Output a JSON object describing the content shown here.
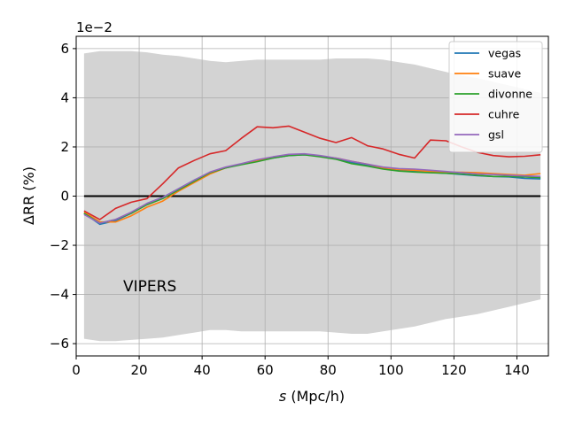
{
  "chart_data": {
    "type": "line",
    "xlabel_italic": "s",
    "xlabel_rest": " (Mpc/h)",
    "ylabel": "ΔRR (%)",
    "offset_text": "1e−2",
    "annotation": "VIPERS",
    "xlim": [
      0,
      150
    ],
    "ylim": [
      -6.5,
      6.5
    ],
    "xticks": [
      0,
      20,
      40,
      60,
      80,
      100,
      120,
      140
    ],
    "yticks": [
      -6,
      -4,
      -2,
      0,
      2,
      4,
      6
    ],
    "xtick_labels": [
      "0",
      "20",
      "40",
      "60",
      "80",
      "100",
      "120",
      "140"
    ],
    "ytick_labels": [
      "−6",
      "−4",
      "−2",
      "0",
      "2",
      "4",
      "6"
    ],
    "grid": true,
    "legend_position": "top-right",
    "zero_line": true,
    "band_color": "#d3d3d3",
    "x": [
      2.5,
      7.5,
      12.5,
      17.5,
      22.5,
      27.5,
      32.5,
      37.5,
      42.5,
      47.5,
      52.5,
      57.5,
      62.5,
      67.5,
      72.5,
      77.5,
      82.5,
      87.5,
      92.5,
      97.5,
      102.5,
      107.5,
      112.5,
      117.5,
      122.5,
      127.5,
      132.5,
      137.5,
      142.5,
      147.5
    ],
    "band_upper": [
      5.8,
      5.9,
      5.9,
      5.9,
      5.85,
      5.75,
      5.7,
      5.6,
      5.5,
      5.45,
      5.5,
      5.55,
      5.55,
      5.55,
      5.55,
      5.55,
      5.6,
      5.6,
      5.6,
      5.55,
      5.45,
      5.35,
      5.2,
      5.05,
      4.9,
      4.8,
      4.65,
      4.5,
      4.35,
      4.2
    ],
    "band_lower": [
      -5.8,
      -5.9,
      -5.9,
      -5.85,
      -5.8,
      -5.75,
      -5.65,
      -5.55,
      -5.45,
      -5.45,
      -5.5,
      -5.5,
      -5.5,
      -5.5,
      -5.5,
      -5.5,
      -5.55,
      -5.6,
      -5.6,
      -5.5,
      -5.4,
      -5.3,
      -5.15,
      -5.0,
      -4.9,
      -4.8,
      -4.65,
      -4.5,
      -4.35,
      -4.2
    ],
    "series": [
      {
        "name": "vegas",
        "color": "#1f77b4",
        "values": [
          -0.7,
          -1.15,
          -1.0,
          -0.7,
          -0.3,
          -0.05,
          0.3,
          0.65,
          0.95,
          1.15,
          1.3,
          1.42,
          1.55,
          1.65,
          1.68,
          1.62,
          1.52,
          1.38,
          1.25,
          1.12,
          1.05,
          1.02,
          0.96,
          0.93,
          0.88,
          0.83,
          0.8,
          0.78,
          0.72,
          0.7
        ]
      },
      {
        "name": "suave",
        "color": "#ff7f0e",
        "values": [
          -0.65,
          -1.05,
          -1.05,
          -0.8,
          -0.45,
          -0.2,
          0.2,
          0.55,
          0.9,
          1.15,
          1.3,
          1.45,
          1.58,
          1.68,
          1.7,
          1.62,
          1.55,
          1.42,
          1.3,
          1.15,
          1.08,
          1.05,
          1.0,
          0.97,
          0.97,
          0.95,
          0.92,
          0.88,
          0.85,
          0.92
        ]
      },
      {
        "name": "divonne",
        "color": "#2ca02c",
        "values": [
          -0.7,
          -1.1,
          -0.95,
          -0.7,
          -0.35,
          -0.1,
          0.25,
          0.6,
          0.95,
          1.15,
          1.28,
          1.4,
          1.55,
          1.65,
          1.68,
          1.6,
          1.5,
          1.32,
          1.22,
          1.1,
          1.02,
          0.98,
          0.95,
          0.93,
          0.9,
          0.85,
          0.8,
          0.8,
          0.78,
          0.75
        ]
      },
      {
        "name": "cuhre",
        "color": "#d62728",
        "values": [
          -0.6,
          -0.95,
          -0.5,
          -0.25,
          -0.1,
          0.5,
          1.15,
          1.45,
          1.72,
          1.85,
          2.35,
          2.82,
          2.78,
          2.85,
          2.6,
          2.35,
          2.18,
          2.38,
          2.05,
          1.92,
          1.7,
          1.55,
          2.28,
          2.25,
          2.0,
          1.78,
          1.65,
          1.6,
          1.62,
          1.68
        ]
      },
      {
        "name": "gsl",
        "color": "#9467bd",
        "values": [
          -0.75,
          -1.1,
          -0.95,
          -0.65,
          -0.3,
          -0.05,
          0.3,
          0.65,
          0.98,
          1.18,
          1.32,
          1.48,
          1.6,
          1.7,
          1.72,
          1.65,
          1.55,
          1.42,
          1.3,
          1.18,
          1.12,
          1.1,
          1.05,
          1.0,
          0.95,
          0.9,
          0.88,
          0.85,
          0.82,
          0.8
        ]
      }
    ]
  }
}
